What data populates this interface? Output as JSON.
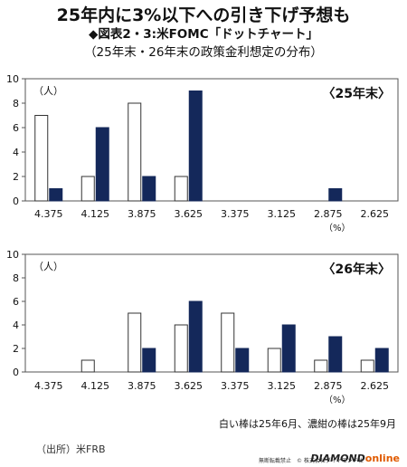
{
  "header": {
    "title": "25年内に3%以下への引き下げ予想も",
    "subtitle": "◆図表2・3:米FOMC「ドットチャート」",
    "caption": "（25年末・26年末の政策金利想定の分布）"
  },
  "footer": {
    "legend_note": "白い棒は25年6月、濃紺の棒は25年9月",
    "source": "（出所）米FRB",
    "copyright": "無断転載禁止　© 株式会社ダイヤモンド社",
    "brand_main": "DIAMOND",
    "brand_sub": "online"
  },
  "colors": {
    "june": "#ffffff",
    "september": "#14285a",
    "axis": "#555555",
    "grid": "#000000"
  },
  "chart_data": [
    {
      "type": "bar",
      "panel_label": "〈25年末〉",
      "unit_label": "（人）",
      "x_unit": "（%）",
      "categories": [
        "4.375",
        "4.125",
        "3.875",
        "3.625",
        "3.375",
        "3.125",
        "2.875",
        "2.625"
      ],
      "series": [
        {
          "values": [
            7,
            2,
            8,
            2,
            0,
            0,
            0,
            0
          ]
        },
        {
          "values": [
            1,
            6,
            2,
            9,
            0,
            0,
            1,
            0
          ]
        }
      ],
      "ylim": [
        0,
        10
      ],
      "yticks": [
        0,
        2,
        4,
        6,
        8,
        10
      ],
      "grid": false
    },
    {
      "type": "bar",
      "panel_label": "〈26年末〉",
      "unit_label": "（人）",
      "x_unit": "（%）",
      "categories": [
        "4.375",
        "4.125",
        "3.875",
        "3.625",
        "3.375",
        "3.125",
        "2.875",
        "2.625"
      ],
      "series": [
        {
          "values": [
            0,
            1,
            5,
            4,
            5,
            2,
            1,
            1
          ]
        },
        {
          "values": [
            0,
            0,
            2,
            6,
            2,
            4,
            3,
            2
          ]
        }
      ],
      "ylim": [
        0,
        10
      ],
      "yticks": [
        0,
        2,
        4,
        6,
        8,
        10
      ],
      "grid": false
    }
  ]
}
